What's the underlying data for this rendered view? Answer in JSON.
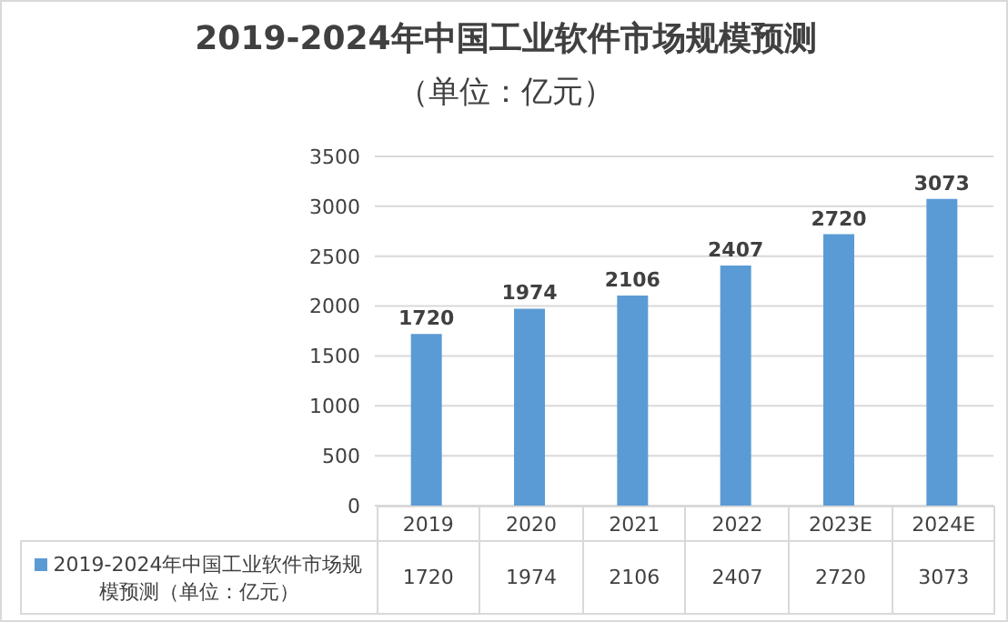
{
  "chart_data": {
    "type": "bar",
    "title": "2019-2024年中国工业软件市场规模预测",
    "subtitle": "（单位：亿元）",
    "categories": [
      "2019",
      "2020",
      "2021",
      "2022",
      "2023E",
      "2024E"
    ],
    "series": [
      {
        "name": "2019-2024年中国工业软件市场规模预测（单位：亿元）",
        "color": "#5b9bd5",
        "values": [
          1720,
          1974,
          2106,
          2407,
          2720,
          3073
        ]
      }
    ],
    "value_labels": [
      "1720",
      "1974",
      "2106",
      "2407",
      "2720",
      "3073"
    ],
    "ylim": [
      0,
      3500
    ],
    "yticks": [
      0,
      500,
      1000,
      1500,
      2000,
      2500,
      3000,
      3500
    ],
    "grid": "y",
    "data_labels": true,
    "legend": "bottom"
  }
}
